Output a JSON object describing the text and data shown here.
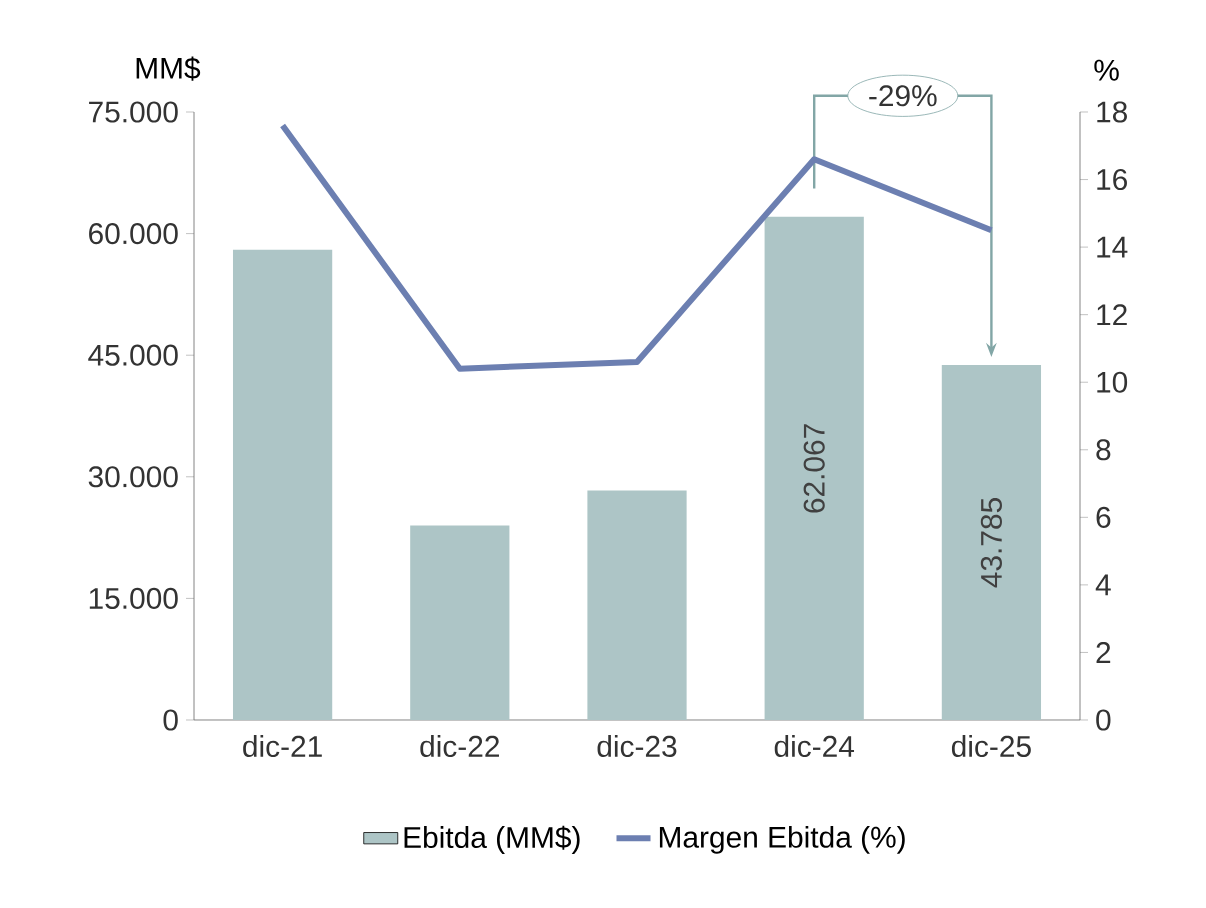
{
  "chart_data": {
    "type": "bar",
    "ylabel": "MM$",
    "y2label": "%",
    "categories": [
      "dic-21",
      "dic-22",
      "dic-23",
      "dic-24",
      "dic-25"
    ],
    "series": [
      {
        "name": "Ebitda (MM$)",
        "color": "#adc5c6",
        "values": [
          58000,
          24000,
          28300,
          62067,
          43785
        ],
        "value_labels": [
          null,
          null,
          null,
          "62.067",
          "43.785"
        ]
      },
      {
        "name": "Margen Ebitda (%)",
        "type": "line",
        "axis": "y2",
        "color": "#6c7fb1",
        "values": [
          17.6,
          10.4,
          10.6,
          16.6,
          14.5
        ]
      }
    ],
    "ylim": [
      0,
      75000
    ],
    "yticks": [
      {
        "value": 0,
        "label": "0"
      },
      {
        "value": 15000,
        "label": "15.000"
      },
      {
        "value": 30000,
        "label": "30.000"
      },
      {
        "value": 45000,
        "label": "45.000"
      },
      {
        "value": 60000,
        "label": "60.000"
      },
      {
        "value": 75000,
        "label": "75.000"
      }
    ],
    "y2lim": [
      0,
      18
    ],
    "y2ticks": [
      0,
      2,
      4,
      6,
      8,
      10,
      12,
      14,
      16,
      18
    ],
    "annotations": [
      "-29%"
    ],
    "legend": "bottom",
    "grid": false,
    "marker": "none"
  }
}
